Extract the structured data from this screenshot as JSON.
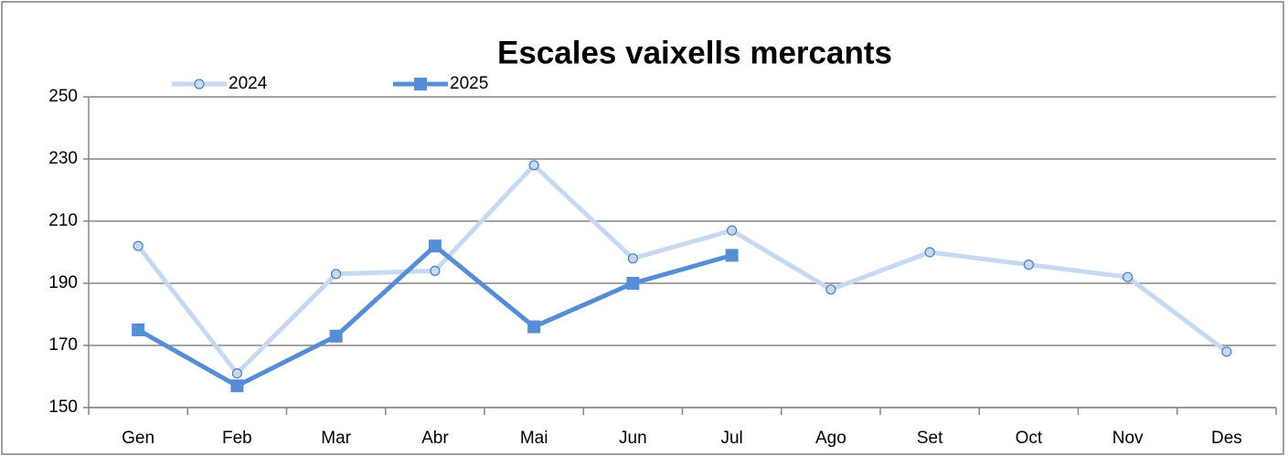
{
  "chart_data": {
    "type": "line",
    "title": "Escales vaixells mercants",
    "categories": [
      "Gen",
      "Feb",
      "Mar",
      "Abr",
      "Mai",
      "Jun",
      "Jul",
      "Ago",
      "Set",
      "Oct",
      "Nov",
      "Des"
    ],
    "series": [
      {
        "name": "2024",
        "color": "#c6d9f1",
        "marker": "circle",
        "values": [
          202,
          161,
          193,
          194,
          228,
          198,
          207,
          188,
          200,
          196,
          192,
          168
        ]
      },
      {
        "name": "2025",
        "color": "#558ed5",
        "marker": "square",
        "values": [
          175,
          157,
          173,
          202,
          176,
          190,
          199,
          null,
          null,
          null,
          null,
          null
        ]
      }
    ],
    "ylim": [
      150,
      250
    ],
    "yticks": [
      150,
      170,
      190,
      210,
      230,
      250
    ],
    "grid": true,
    "legend": "top left"
  }
}
